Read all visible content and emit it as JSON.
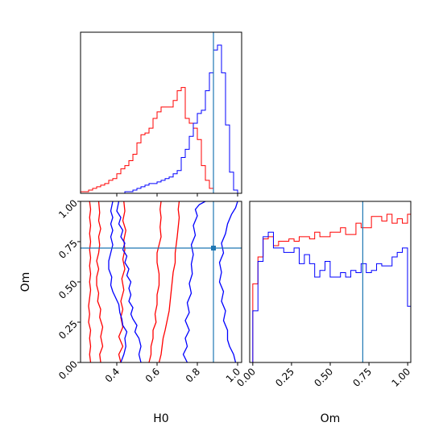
{
  "chart_data": {
    "type": "corner",
    "parameters": [
      "H0",
      "Om"
    ],
    "truth": {
      "H0": 0.88,
      "Om": 0.71
    },
    "colors": {
      "red": "#ff0000",
      "blue": "#0000ff",
      "truth": "#1f77b4"
    },
    "panels": [
      {
        "id": "H0-hist",
        "type": "histogram",
        "x": "H0",
        "xlim": [
          0.22,
          1.02
        ],
        "bin_width": 0.02,
        "series": [
          {
            "color": "red",
            "x_start": 0.22,
            "counts": [
              1,
              1,
              2,
              3,
              4,
              5,
              6,
              8,
              9,
              12,
              15,
              17,
              20,
              24,
              31,
              36,
              37,
              40,
              46,
              50,
              53,
              53,
              53,
              57,
              63,
              65,
              46,
              43,
              40,
              33,
              17,
              8,
              3,
              0
            ]
          },
          {
            "color": "blue",
            "x_start": 0.22,
            "counts": [
              0,
              0,
              0,
              0,
              0,
              0,
              0,
              0,
              0,
              0,
              0,
              1,
              1,
              2,
              3,
              4,
              5,
              6,
              6,
              7,
              8,
              9,
              10,
              12,
              14,
              22,
              27,
              35,
              43,
              49,
              51,
              63,
              74,
              88,
              91,
              74,
              42,
              13,
              2
            ]
          }
        ]
      },
      {
        "id": "Om-hist",
        "type": "histogram",
        "x": "Om",
        "xlim": [
          -0.02,
          1.02
        ],
        "xticks": [
          "0.00",
          "0.25",
          "0.50",
          "0.75",
          "1.00"
        ],
        "xtick_values": [
          0,
          0.25,
          0.5,
          0.75,
          1.0
        ],
        "xlabel": "Om",
        "bin_width": 0.0333,
        "series": [
          {
            "color": "red",
            "x_start": 0.0,
            "counts": [
              35,
              47,
              55,
              56,
              52,
              54,
              54,
              55,
              54,
              56,
              56,
              55,
              58,
              56,
              56,
              58,
              58,
              60,
              57,
              57,
              62,
              60,
              60,
              65,
              65,
              63,
              66,
              62,
              64,
              62,
              66
            ]
          },
          {
            "color": "blue",
            "x_start": 0.0,
            "counts": [
              23,
              45,
              56,
              58,
              51,
              51,
              49,
              49,
              51,
              44,
              48,
              44,
              38,
              41,
              45,
              38,
              38,
              40,
              38,
              41,
              40,
              44,
              40,
              41,
              44,
              43,
              43,
              47,
              49,
              51,
              25
            ]
          }
        ]
      },
      {
        "id": "H0-Om-contour",
        "type": "contour",
        "x": "H0",
        "y": "Om",
        "xlim": [
          0.22,
          1.02
        ],
        "ylim": [
          0.0,
          1.0
        ],
        "xticks": [
          "0.4",
          "0.6",
          "0.8",
          "1.0"
        ],
        "xtick_values": [
          0.4,
          0.6,
          0.8,
          1.0
        ],
        "yticks": [
          "0.00",
          "0.25",
          "0.50",
          "0.75",
          "1.00"
        ],
        "ytick_values": [
          0,
          0.25,
          0.5,
          0.75,
          1.0
        ],
        "xlabel": "H0",
        "ylabel": "Om",
        "contours": [
          {
            "color": "red",
            "points": [
              [
                0.27,
                0.0
              ],
              [
                0.265,
                0.05
              ],
              [
                0.27,
                0.1
              ],
              [
                0.265,
                0.15
              ],
              [
                0.27,
                0.2
              ],
              [
                0.26,
                0.25
              ],
              [
                0.265,
                0.3
              ],
              [
                0.26,
                0.35
              ],
              [
                0.265,
                0.4
              ],
              [
                0.27,
                0.45
              ],
              [
                0.265,
                0.5
              ],
              [
                0.27,
                0.55
              ],
              [
                0.265,
                0.6
              ],
              [
                0.27,
                0.65
              ],
              [
                0.265,
                0.7
              ],
              [
                0.27,
                0.75
              ],
              [
                0.265,
                0.8
              ],
              [
                0.27,
                0.85
              ],
              [
                0.265,
                0.9
              ],
              [
                0.27,
                0.95
              ],
              [
                0.265,
                1.0
              ]
            ]
          },
          {
            "color": "red",
            "points": [
              [
                0.32,
                0.0
              ],
              [
                0.315,
                0.05
              ],
              [
                0.33,
                0.1
              ],
              [
                0.32,
                0.16
              ],
              [
                0.33,
                0.22
              ],
              [
                0.315,
                0.28
              ],
              [
                0.32,
                0.33
              ],
              [
                0.305,
                0.38
              ],
              [
                0.31,
                0.43
              ],
              [
                0.3,
                0.48
              ],
              [
                0.3,
                0.53
              ],
              [
                0.31,
                0.58
              ],
              [
                0.3,
                0.63
              ],
              [
                0.31,
                0.68
              ],
              [
                0.315,
                0.73
              ],
              [
                0.31,
                0.78
              ],
              [
                0.32,
                0.83
              ],
              [
                0.31,
                0.88
              ],
              [
                0.315,
                0.93
              ],
              [
                0.31,
                1.0
              ]
            ]
          },
          {
            "color": "red",
            "points": [
              [
                0.42,
                0.0
              ],
              [
                0.41,
                0.05
              ],
              [
                0.43,
                0.1
              ],
              [
                0.41,
                0.16
              ],
              [
                0.43,
                0.22
              ],
              [
                0.42,
                0.28
              ],
              [
                0.43,
                0.33
              ],
              [
                0.42,
                0.38
              ],
              [
                0.435,
                0.45
              ],
              [
                0.425,
                0.52
              ],
              [
                0.44,
                0.58
              ],
              [
                0.43,
                0.64
              ],
              [
                0.44,
                0.7
              ],
              [
                0.435,
                0.76
              ],
              [
                0.445,
                0.82
              ],
              [
                0.43,
                0.88
              ],
              [
                0.44,
                0.94
              ],
              [
                0.435,
                1.0
              ]
            ]
          },
          {
            "color": "red",
            "points": [
              [
                0.56,
                0.0
              ],
              [
                0.57,
                0.05
              ],
              [
                0.57,
                0.1
              ],
              [
                0.58,
                0.15
              ],
              [
                0.58,
                0.2
              ],
              [
                0.595,
                0.25
              ],
              [
                0.59,
                0.3
              ],
              [
                0.6,
                0.36
              ],
              [
                0.6,
                0.42
              ],
              [
                0.61,
                0.48
              ],
              [
                0.61,
                0.55
              ],
              [
                0.6,
                0.62
              ],
              [
                0.6,
                0.68
              ],
              [
                0.61,
                0.73
              ],
              [
                0.62,
                0.78
              ],
              [
                0.615,
                0.84
              ],
              [
                0.62,
                0.9
              ],
              [
                0.615,
                0.95
              ],
              [
                0.62,
                1.0
              ]
            ]
          },
          {
            "color": "red",
            "points": [
              [
                0.61,
                0.0
              ],
              [
                0.62,
                0.05
              ],
              [
                0.625,
                0.1
              ],
              [
                0.63,
                0.15
              ],
              [
                0.64,
                0.2
              ],
              [
                0.65,
                0.26
              ],
              [
                0.66,
                0.32
              ],
              [
                0.665,
                0.38
              ],
              [
                0.67,
                0.44
              ],
              [
                0.675,
                0.5
              ],
              [
                0.68,
                0.56
              ],
              [
                0.69,
                0.62
              ],
              [
                0.69,
                0.68
              ],
              [
                0.695,
                0.73
              ],
              [
                0.7,
                0.78
              ],
              [
                0.705,
                0.84
              ],
              [
                0.71,
                0.9
              ],
              [
                0.705,
                0.95
              ],
              [
                0.71,
                1.0
              ]
            ]
          },
          {
            "color": "blue",
            "points": [
              [
                0.52,
                0.0
              ],
              [
                0.51,
                0.05
              ],
              [
                0.52,
                0.1
              ],
              [
                0.51,
                0.15
              ],
              [
                0.49,
                0.19
              ],
              [
                0.5,
                0.23
              ],
              [
                0.48,
                0.27
              ],
              [
                0.47,
                0.3
              ],
              [
                0.48,
                0.34
              ],
              [
                0.46,
                0.38
              ],
              [
                0.47,
                0.42
              ],
              [
                0.46,
                0.46
              ],
              [
                0.47,
                0.5
              ],
              [
                0.45,
                0.54
              ],
              [
                0.46,
                0.58
              ],
              [
                0.44,
                0.62
              ],
              [
                0.45,
                0.66
              ],
              [
                0.43,
                0.7
              ],
              [
                0.44,
                0.74
              ],
              [
                0.42,
                0.78
              ],
              [
                0.43,
                0.82
              ],
              [
                0.41,
                0.86
              ],
              [
                0.42,
                0.9
              ],
              [
                0.4,
                0.94
              ],
              [
                0.41,
                1.0
              ]
            ]
          },
          {
            "color": "blue",
            "points": [
              [
                0.42,
                0.0
              ],
              [
                0.435,
                0.05
              ],
              [
                0.445,
                0.1
              ],
              [
                0.44,
                0.15
              ],
              [
                0.45,
                0.19
              ],
              [
                0.43,
                0.23
              ],
              [
                0.425,
                0.27
              ],
              [
                0.415,
                0.31
              ],
              [
                0.41,
                0.36
              ],
              [
                0.395,
                0.4
              ],
              [
                0.38,
                0.44
              ],
              [
                0.37,
                0.48
              ],
              [
                0.375,
                0.53
              ],
              [
                0.36,
                0.58
              ],
              [
                0.36,
                0.63
              ],
              [
                0.37,
                0.68
              ],
              [
                0.38,
                0.73
              ],
              [
                0.37,
                0.78
              ],
              [
                0.38,
                0.82
              ],
              [
                0.37,
                0.86
              ],
              [
                0.38,
                0.9
              ],
              [
                0.37,
                0.94
              ],
              [
                0.38,
                1.0
              ]
            ]
          },
          {
            "color": "blue",
            "points": [
              [
                0.75,
                0.0
              ],
              [
                0.73,
                0.05
              ],
              [
                0.75,
                0.1
              ],
              [
                0.74,
                0.15
              ],
              [
                0.76,
                0.2
              ],
              [
                0.74,
                0.26
              ],
              [
                0.76,
                0.31
              ],
              [
                0.75,
                0.37
              ],
              [
                0.77,
                0.43
              ],
              [
                0.76,
                0.49
              ],
              [
                0.775,
                0.55
              ],
              [
                0.77,
                0.61
              ],
              [
                0.78,
                0.67
              ],
              [
                0.77,
                0.73
              ],
              [
                0.79,
                0.79
              ],
              [
                0.78,
                0.85
              ],
              [
                0.8,
                0.91
              ],
              [
                0.79,
                0.95
              ],
              [
                0.81,
                0.98
              ],
              [
                0.84,
                1.0
              ]
            ]
          },
          {
            "color": "blue",
            "points": [
              [
                0.99,
                0.0
              ],
              [
                0.98,
                0.05
              ],
              [
                0.96,
                0.1
              ],
              [
                0.95,
                0.14
              ],
              [
                0.95,
                0.2
              ],
              [
                0.93,
                0.26
              ],
              [
                0.94,
                0.32
              ],
              [
                0.92,
                0.38
              ],
              [
                0.93,
                0.44
              ],
              [
                0.91,
                0.5
              ],
              [
                0.92,
                0.56
              ],
              [
                0.91,
                0.62
              ],
              [
                0.93,
                0.68
              ],
              [
                0.92,
                0.74
              ],
              [
                0.94,
                0.8
              ],
              [
                0.95,
                0.86
              ],
              [
                0.97,
                0.92
              ],
              [
                0.99,
                0.96
              ],
              [
                1.0,
                1.0
              ]
            ]
          }
        ]
      }
    ]
  }
}
